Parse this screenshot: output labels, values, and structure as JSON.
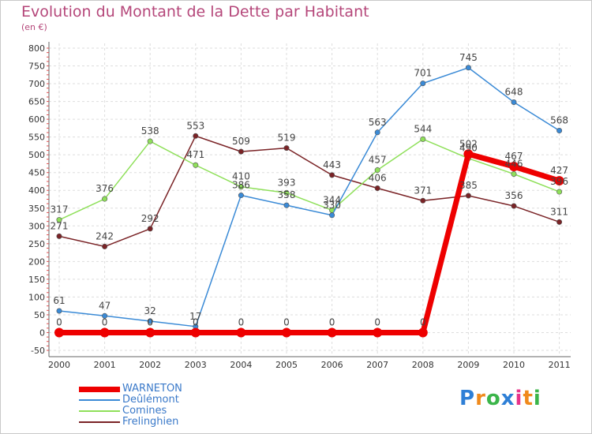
{
  "title": "Evolution du Montant de la Dette par Habitant",
  "unit": "(en €)",
  "logo": {
    "text": "Proxiti",
    "colors": [
      "#2e7fd6",
      "#f08a1c",
      "#3bb54a",
      "#2e7fd6",
      "#e8338a",
      "#f08a1c",
      "#3bb54a"
    ]
  },
  "chart_data": {
    "type": "line",
    "title": "Evolution du Montant de la Dette par Habitant",
    "ylabel": "(en €)",
    "xlabel": "",
    "categories": [
      "2000",
      "2001",
      "2002",
      "2003",
      "2004",
      "2005",
      "2006",
      "2007",
      "2008",
      "2009",
      "2010",
      "2011"
    ],
    "ylim": [
      -50,
      800
    ],
    "yticks": [
      "-50",
      "0",
      "50",
      "100",
      "150",
      "200",
      "250",
      "300",
      "350",
      "400",
      "450",
      "500",
      "550",
      "600",
      "650",
      "700",
      "750",
      "800"
    ],
    "grid": true,
    "legend_position": "bottom-left",
    "series": [
      {
        "name": "WARNETON",
        "color": "#ee0000",
        "values": [
          0,
          0,
          0,
          0,
          0,
          0,
          0,
          0,
          0,
          502,
          467,
          427
        ],
        "labels": [
          "0",
          "0",
          "0",
          "0",
          "0",
          "0",
          "0",
          "0",
          "0",
          "502",
          "467",
          "427"
        ]
      },
      {
        "name": "Deûlémont",
        "color": "#3a8ad6",
        "values": [
          61,
          47,
          32,
          17,
          386,
          358,
          330,
          563,
          701,
          745,
          648,
          568
        ],
        "labels": [
          "61",
          "47",
          "32",
          "17",
          "386",
          "358",
          "330",
          "563",
          "701",
          "745",
          "648",
          "568"
        ]
      },
      {
        "name": "Comines",
        "color": "#8fe05a",
        "values": [
          317,
          376,
          538,
          471,
          410,
          393,
          344,
          457,
          544,
          490,
          446,
          396
        ],
        "labels": [
          "317",
          "376",
          "538",
          "471",
          "410",
          "393",
          "344",
          "457",
          "544",
          "490",
          "446",
          "396"
        ]
      },
      {
        "name": "Frelinghien",
        "color": "#7a2326",
        "values": [
          271,
          242,
          292,
          553,
          509,
          519,
          443,
          406,
          371,
          385,
          356,
          311
        ],
        "labels": [
          "271",
          "242",
          "292",
          "553",
          "509",
          "519",
          "443",
          "406",
          "371",
          "385",
          "356",
          "311"
        ]
      }
    ]
  }
}
